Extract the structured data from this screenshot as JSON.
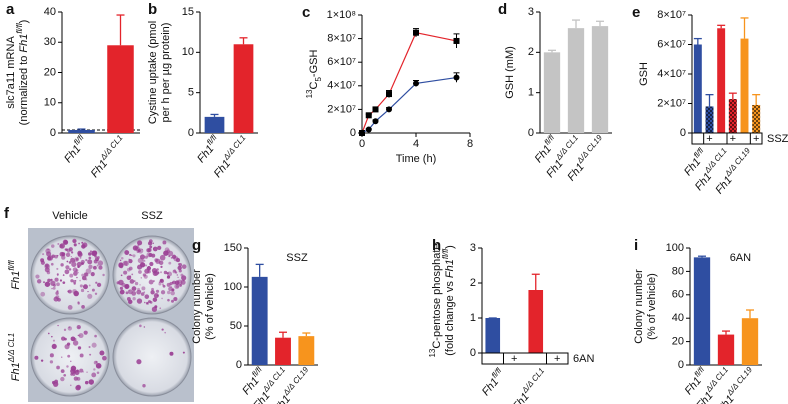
{
  "chart_data": [
    {
      "panel": "a",
      "type": "bar",
      "ylabel": [
        [
          {
            "text": "slc7a11 mRNA"
          }
        ],
        [
          {
            "text": "(normalized to "
          },
          {
            "text": "Fh1",
            "italic": true
          },
          {
            "text": "fl/fl",
            "italic": true,
            "pos": "sup"
          },
          {
            "text": ")"
          }
        ]
      ],
      "categories": [
        [
          {
            "text": "Fh1",
            "italic": true
          },
          {
            "text": "fl/fl",
            "italic": true,
            "pos": "sup"
          }
        ],
        [
          {
            "text": "Fh1",
            "italic": true
          },
          {
            "text": "Δ/Δ CL1",
            "italic": true,
            "pos": "sup"
          }
        ]
      ],
      "series": [
        {
          "values": [
            1,
            29
          ],
          "errors": [
            0.3,
            10
          ]
        }
      ],
      "colors": [
        "#2f4ea1",
        "#e3242b"
      ],
      "ylim": [
        0,
        40
      ],
      "yticks": [
        0,
        10,
        20,
        30,
        40
      ],
      "reference_line": 1
    },
    {
      "panel": "b",
      "type": "bar",
      "ylabel": [
        [
          {
            "text": "Cystine uptake (pmol"
          }
        ],
        [
          {
            "text": "per h per µg protein)"
          }
        ]
      ],
      "categories": [
        [
          {
            "text": "Fh1",
            "italic": true
          },
          {
            "text": "fl/fl",
            "italic": true,
            "pos": "sup"
          }
        ],
        [
          {
            "text": "Fh1",
            "italic": true
          },
          {
            "text": "Δ/Δ CL1",
            "italic": true,
            "pos": "sup"
          }
        ]
      ],
      "series": [
        {
          "values": [
            2,
            11
          ],
          "errors": [
            0.3,
            0.8
          ]
        }
      ],
      "colors": [
        "#2f4ea1",
        "#e3242b"
      ],
      "ylim": [
        0,
        15
      ],
      "yticks": [
        0,
        5,
        10,
        15
      ]
    },
    {
      "panel": "c",
      "type": "line",
      "ylabel": [
        [
          {
            "text": "13",
            "pos": "sup"
          },
          {
            "text": "C"
          },
          {
            "text": "5",
            "pos": "sub"
          },
          {
            "text": "-GSH"
          }
        ]
      ],
      "xlabel": "Time (h)",
      "x": [
        0,
        0.5,
        1,
        2,
        4,
        7
      ],
      "series": [
        {
          "color": "#e3242b",
          "marker": "square",
          "values": [
            0,
            15000000,
            20000000,
            33000000,
            85000000,
            78000000
          ],
          "errors": [
            0,
            1000000,
            1500000,
            3000000,
            3500000,
            6000000
          ]
        },
        {
          "color": "#2f4ea1",
          "marker": "circle",
          "values": [
            0,
            3000000,
            10000000,
            20000000,
            42000000,
            47000000
          ],
          "errors": [
            0,
            500000,
            1000000,
            1500000,
            2500000,
            4000000
          ]
        }
      ],
      "xlim": [
        0,
        8
      ],
      "xticks": [
        0,
        4,
        8
      ],
      "ylim": [
        0,
        100000000
      ],
      "yticks": [
        0,
        {
          "value": 20000000,
          "label": "2×10⁷"
        },
        {
          "value": 40000000,
          "label": "4×10⁷"
        },
        {
          "value": 60000000,
          "label": "6×10⁷"
        },
        {
          "value": 80000000,
          "label": "8×10⁷"
        },
        {
          "value": 100000000,
          "label": "1×10⁸"
        }
      ]
    },
    {
      "panel": "d",
      "type": "bar",
      "ylabel": [
        [
          {
            "text": "GSH (mM)"
          }
        ]
      ],
      "categories": [
        [
          {
            "text": "Fh1",
            "italic": true
          },
          {
            "text": "fl/fl",
            "italic": true,
            "pos": "sup"
          }
        ],
        [
          {
            "text": "Fh1",
            "italic": true
          },
          {
            "text": "Δ/Δ CL1",
            "italic": true,
            "pos": "sup"
          }
        ],
        [
          {
            "text": "Fh1",
            "italic": true
          },
          {
            "text": "Δ/Δ CL19",
            "italic": true,
            "pos": "sup"
          }
        ]
      ],
      "series": [
        {
          "values": [
            2.0,
            2.6,
            2.65
          ],
          "errors": [
            0.05,
            0.2,
            0.12
          ]
        }
      ],
      "colors": [
        "#c4c4c4",
        "#c4c4c4",
        "#c4c4c4"
      ],
      "ylim": [
        0,
        3
      ],
      "yticks": [
        0,
        1,
        2,
        3
      ]
    },
    {
      "panel": "e",
      "type": "bar",
      "ylabel": [
        [
          {
            "text": "GSH"
          }
        ]
      ],
      "categories": [
        [
          {
            "text": "Fh1",
            "italic": true
          },
          {
            "text": "fl/fl",
            "italic": true,
            "pos": "sup"
          }
        ],
        [
          {
            "text": "Fh1",
            "italic": true
          },
          {
            "text": "Δ/Δ CL1",
            "italic": true,
            "pos": "sup"
          }
        ],
        [
          {
            "text": "Fh1",
            "italic": true
          },
          {
            "text": "Δ/Δ CL19",
            "italic": true,
            "pos": "sup"
          }
        ]
      ],
      "series": [
        {
          "values": [
            60000000,
            71000000,
            64000000
          ],
          "errors": [
            4000000,
            2000000,
            14000000
          ]
        },
        {
          "values": [
            18000000,
            23000000,
            19000000
          ],
          "errors": [
            8000000,
            4000000,
            7000000
          ],
          "pattern": "checker"
        }
      ],
      "treatment": {
        "label": "SSZ",
        "mark": "+"
      },
      "colors": [
        "#2f4ea1",
        "#e3242b",
        "#f7941d"
      ],
      "ylim": [
        0,
        80000000
      ],
      "yticks": [
        0,
        {
          "value": 20000000,
          "label": "2×10⁷"
        },
        {
          "value": 40000000,
          "label": "4×10⁷"
        },
        {
          "value": 60000000,
          "label": "6×10⁷"
        },
        {
          "value": 80000000,
          "label": "8×10⁷"
        }
      ]
    },
    {
      "panel": "g",
      "type": "bar",
      "annotation": "SSZ",
      "ylabel": [
        [
          {
            "text": "Colony number"
          }
        ],
        [
          {
            "text": "(% of vehicle)"
          }
        ]
      ],
      "categories": [
        [
          {
            "text": "Fh1",
            "italic": true
          },
          {
            "text": "fl/fl",
            "italic": true,
            "pos": "sup"
          }
        ],
        [
          {
            "text": "Fh1",
            "italic": true
          },
          {
            "text": "Δ/Δ CL1",
            "italic": true,
            "pos": "sup"
          }
        ],
        [
          {
            "text": "Fh1",
            "italic": true
          },
          {
            "text": "Δ/Δ CL19",
            "italic": true,
            "pos": "sup"
          }
        ]
      ],
      "series": [
        {
          "values": [
            113,
            35,
            37
          ],
          "errors": [
            16,
            7,
            4
          ]
        }
      ],
      "colors": [
        "#2f4ea1",
        "#e3242b",
        "#f7941d"
      ],
      "ylim": [
        0,
        150
      ],
      "yticks": [
        0,
        50,
        100,
        150
      ]
    },
    {
      "panel": "h",
      "type": "bar",
      "ylabel": [
        [
          {
            "text": "13",
            "pos": "sup"
          },
          {
            "text": "C-pentose phosphate"
          }
        ],
        [
          {
            "text": "(fold change vs "
          },
          {
            "text": "Fh1",
            "italic": true
          },
          {
            "text": "fl/fl",
            "italic": true,
            "pos": "sup"
          },
          {
            "text": ")"
          }
        ]
      ],
      "categories": [
        [
          {
            "text": "Fh1",
            "italic": true
          },
          {
            "text": "fl/fl",
            "italic": true,
            "pos": "sup"
          }
        ],
        [
          {
            "text": "Fh1",
            "italic": true
          },
          {
            "text": "Δ/Δ CL1",
            "italic": true,
            "pos": "sup"
          }
        ]
      ],
      "series": [
        {
          "values": [
            1,
            1.8
          ],
          "errors": [
            0,
            0.45
          ]
        }
      ],
      "treatment": {
        "label": "6AN",
        "mark": "+"
      },
      "colors": [
        "#2f4ea1",
        "#e3242b"
      ],
      "ylim": [
        0,
        3
      ],
      "yticks": [
        0,
        1,
        2,
        3
      ]
    },
    {
      "panel": "i",
      "type": "bar",
      "annotation": "6AN",
      "ylabel": [
        [
          {
            "text": "Colony number"
          }
        ],
        [
          {
            "text": "(% of vehicle)"
          }
        ]
      ],
      "categories": [
        [
          {
            "text": "Fh1",
            "italic": true
          },
          {
            "text": "fl/fl",
            "italic": true,
            "pos": "sup"
          }
        ],
        [
          {
            "text": "Fh1",
            "italic": true
          },
          {
            "text": "Δ/Δ CL1",
            "italic": true,
            "pos": "sup"
          }
        ],
        [
          {
            "text": "Fh1",
            "italic": true
          },
          {
            "text": "Δ/Δ CL19",
            "italic": true,
            "pos": "sup"
          }
        ]
      ],
      "series": [
        {
          "values": [
            92,
            26,
            40
          ],
          "errors": [
            1,
            3,
            7
          ]
        }
      ],
      "colors": [
        "#2f4ea1",
        "#e3242b",
        "#f7941d"
      ],
      "ylim": [
        0,
        100
      ],
      "yticks": [
        0,
        20,
        40,
        60,
        80,
        100
      ]
    }
  ],
  "photo_panel": {
    "panel": "f",
    "columns": [
      "Vehicle",
      "SSZ"
    ],
    "rows": [
      [
        {
          "text": "Fh1",
          "italic": true
        },
        {
          "text": "fl/fl",
          "italic": true,
          "pos": "sup"
        }
      ],
      [
        {
          "text": "Fh1",
          "italic": true
        },
        {
          "text": "Δ/Δ CL1",
          "italic": true,
          "pos": "sup"
        }
      ]
    ]
  }
}
